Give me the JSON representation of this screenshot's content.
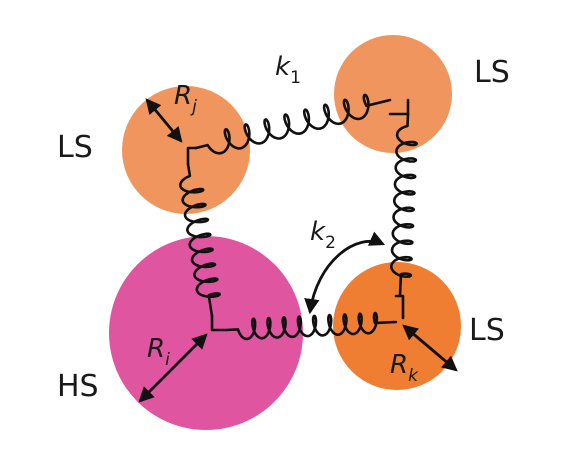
{
  "colors": {
    "ls_light": "#f0955e",
    "ls_dark": "#ef7d32",
    "hs": "#e0559f",
    "ink": "#111111"
  },
  "particles": [
    {
      "label": "LS",
      "radius_label": "R",
      "radius_sub": "j",
      "state": "low-spin"
    },
    {
      "label": "LS",
      "state": "low-spin"
    },
    {
      "label": "LS",
      "radius_label": "R",
      "radius_sub": "k",
      "state": "low-spin"
    },
    {
      "label": "HS",
      "radius_label": "R",
      "radius_sub": "i",
      "state": "high-spin"
    }
  ],
  "springs": {
    "k1_label": "k",
    "k1_sub": "1",
    "k2_label": "k",
    "k2_sub": "2"
  }
}
